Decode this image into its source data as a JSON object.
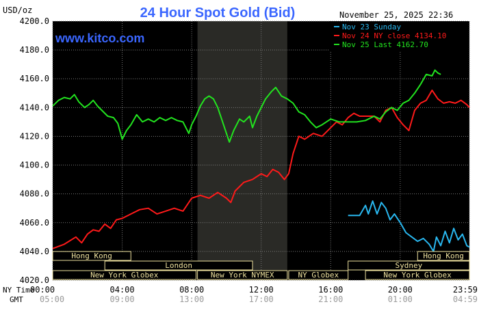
{
  "header": {
    "title": "24 Hour Spot Gold (Bid)",
    "unit_label": "USD/oz",
    "watermark": "www.kitco.com",
    "timestamp": "November 25, 2025 22:36"
  },
  "axis_row_labels": {
    "ny_time": "NY Time",
    "gmt": "GMT"
  },
  "colors": {
    "background": "#000000",
    "grid": "#7a7a7a",
    "title": "#3a66ff",
    "series_sunday": "#29b8f0",
    "series_close": "#ff1a1a",
    "series_last": "#22e51f",
    "session_label": "#f0e3a0",
    "ticks": "#ffffff",
    "gmt_ticks": "#9a9a9a",
    "nymex_shade": "#2a2a26"
  },
  "sessions": [
    {
      "name": "Hong Kong",
      "row": 0,
      "start": "00:00",
      "end": "04:30"
    },
    {
      "name": "Hong Kong",
      "row": 0,
      "start": "21:00",
      "end": "23:59"
    },
    {
      "name": "London",
      "row": 1,
      "start": "03:00",
      "end": "11:30"
    },
    {
      "name": "Sydney",
      "row": 1,
      "start": "17:00",
      "end": "23:59"
    },
    {
      "name": "New York Globex",
      "row": 2,
      "start": "00:00",
      "end": "08:15"
    },
    {
      "name": "New York NYMEX",
      "row": 2,
      "start": "08:20",
      "end": "13:30"
    },
    {
      "name": "NY Globex",
      "row": 2,
      "start": "13:35",
      "end": "17:00"
    },
    {
      "name": "New York Globex",
      "row": 2,
      "start": "18:00",
      "end": "23:59"
    }
  ],
  "chart_data": {
    "type": "line",
    "title": "24 Hour Spot Gold (Bid)",
    "ylabel": "USD/oz",
    "ylim": [
      4020,
      4200
    ],
    "yticks": [
      "4200.0",
      "4180.0",
      "4160.0",
      "4140.0",
      "4120.0",
      "4100.0",
      "4080.0",
      "4060.0",
      "4040.0",
      "4020.0"
    ],
    "xlim": [
      "00:00",
      "23:59"
    ],
    "xticks_ny": [
      "00:00",
      "04:00",
      "08:00",
      "12:00",
      "16:00",
      "20:00",
      "23:59"
    ],
    "xticks_gmt": [
      "05:00",
      "09:00",
      "13:00",
      "17:00",
      "21:00",
      "01:00",
      "04:59"
    ],
    "shaded_region": {
      "label": "New York NYMEX",
      "start": "08:20",
      "end": "13:30"
    },
    "grid": true,
    "legend_position": "top-right",
    "series": [
      {
        "name": "Nov 23 Sunday",
        "legend": "Nov 23 Sunday",
        "color_key": "series_sunday",
        "points": [
          [
            "17:00",
            4065
          ],
          [
            "17:40",
            4065
          ],
          [
            "18:00",
            4072
          ],
          [
            "18:10",
            4066
          ],
          [
            "18:25",
            4075
          ],
          [
            "18:40",
            4066
          ],
          [
            "18:55",
            4074
          ],
          [
            "19:10",
            4070
          ],
          [
            "19:25",
            4062
          ],
          [
            "19:40",
            4066
          ],
          [
            "20:00",
            4060
          ],
          [
            "20:20",
            4053
          ],
          [
            "20:40",
            4050
          ],
          [
            "21:00",
            4047
          ],
          [
            "21:20",
            4049
          ],
          [
            "21:40",
            4045
          ],
          [
            "21:55",
            4040
          ],
          [
            "22:05",
            4050
          ],
          [
            "22:20",
            4044
          ],
          [
            "22:35",
            4054
          ],
          [
            "22:50",
            4046
          ],
          [
            "23:05",
            4056
          ],
          [
            "23:20",
            4048
          ],
          [
            "23:35",
            4052
          ],
          [
            "23:50",
            4044
          ],
          [
            "23:59",
            4043
          ]
        ]
      },
      {
        "name": "Nov 24 NY close",
        "legend": "Nov 24 NY close 4134.10",
        "color_key": "series_close",
        "points": [
          [
            "00:00",
            4042
          ],
          [
            "00:40",
            4045
          ],
          [
            "01:20",
            4050
          ],
          [
            "01:40",
            4046
          ],
          [
            "02:00",
            4052
          ],
          [
            "02:20",
            4055
          ],
          [
            "02:40",
            4054
          ],
          [
            "03:00",
            4059
          ],
          [
            "03:20",
            4056
          ],
          [
            "03:40",
            4062
          ],
          [
            "04:00",
            4063
          ],
          [
            "04:30",
            4066
          ],
          [
            "05:00",
            4069
          ],
          [
            "05:30",
            4070
          ],
          [
            "06:00",
            4066
          ],
          [
            "06:30",
            4068
          ],
          [
            "07:00",
            4070
          ],
          [
            "07:30",
            4068
          ],
          [
            "08:00",
            4077
          ],
          [
            "08:30",
            4079
          ],
          [
            "09:00",
            4077
          ],
          [
            "09:30",
            4081
          ],
          [
            "10:00",
            4077
          ],
          [
            "10:15",
            4074
          ],
          [
            "10:30",
            4082
          ],
          [
            "11:00",
            4088
          ],
          [
            "11:30",
            4090
          ],
          [
            "12:00",
            4094
          ],
          [
            "12:20",
            4092
          ],
          [
            "12:40",
            4097
          ],
          [
            "13:00",
            4095
          ],
          [
            "13:20",
            4090
          ],
          [
            "13:35",
            4094
          ],
          [
            "13:50",
            4108
          ],
          [
            "14:10",
            4120
          ],
          [
            "14:30",
            4118
          ],
          [
            "15:00",
            4122
          ],
          [
            "15:30",
            4120
          ],
          [
            "16:00",
            4126
          ],
          [
            "16:20",
            4130
          ],
          [
            "16:40",
            4128
          ],
          [
            "17:00",
            4133
          ],
          [
            "17:20",
            4136
          ],
          [
            "17:40",
            4134
          ],
          [
            "18:00",
            4134
          ],
          [
            "18:30",
            4134
          ],
          [
            "18:50",
            4130
          ],
          [
            "19:10",
            4138
          ],
          [
            "19:30",
            4140
          ],
          [
            "19:50",
            4133
          ],
          [
            "20:10",
            4128
          ],
          [
            "20:30",
            4124
          ],
          [
            "20:50",
            4138
          ],
          [
            "21:10",
            4143
          ],
          [
            "21:30",
            4145
          ],
          [
            "21:50",
            4152
          ],
          [
            "22:10",
            4146
          ],
          [
            "22:30",
            4143
          ],
          [
            "22:50",
            4144
          ],
          [
            "23:10",
            4143
          ],
          [
            "23:30",
            4145
          ],
          [
            "23:50",
            4142
          ],
          [
            "23:59",
            4140
          ]
        ]
      },
      {
        "name": "Nov 25 Last",
        "legend": "Nov 25 Last 4162.70",
        "color_key": "series_last",
        "points": [
          [
            "00:00",
            4141
          ],
          [
            "00:20",
            4145
          ],
          [
            "00:40",
            4147
          ],
          [
            "01:00",
            4146
          ],
          [
            "01:15",
            4149
          ],
          [
            "01:30",
            4144
          ],
          [
            "01:50",
            4140
          ],
          [
            "02:05",
            4142
          ],
          [
            "02:20",
            4145
          ],
          [
            "02:35",
            4141
          ],
          [
            "02:50",
            4138
          ],
          [
            "03:10",
            4134
          ],
          [
            "03:30",
            4133
          ],
          [
            "03:45",
            4129
          ],
          [
            "04:00",
            4118
          ],
          [
            "04:15",
            4124
          ],
          [
            "04:30",
            4128
          ],
          [
            "04:50",
            4135
          ],
          [
            "05:10",
            4130
          ],
          [
            "05:30",
            4132
          ],
          [
            "05:50",
            4130
          ],
          [
            "06:10",
            4133
          ],
          [
            "06:30",
            4131
          ],
          [
            "06:50",
            4133
          ],
          [
            "07:10",
            4131
          ],
          [
            "07:30",
            4130
          ],
          [
            "07:50",
            4122
          ],
          [
            "08:00",
            4128
          ],
          [
            "08:15",
            4134
          ],
          [
            "08:30",
            4141
          ],
          [
            "08:45",
            4146
          ],
          [
            "09:00",
            4148
          ],
          [
            "09:15",
            4146
          ],
          [
            "09:30",
            4140
          ],
          [
            "09:45",
            4131
          ],
          [
            "10:00",
            4122
          ],
          [
            "10:10",
            4116
          ],
          [
            "10:25",
            4124
          ],
          [
            "10:45",
            4132
          ],
          [
            "11:00",
            4130
          ],
          [
            "11:20",
            4134
          ],
          [
            "11:30",
            4126
          ],
          [
            "11:45",
            4134
          ],
          [
            "12:00",
            4140
          ],
          [
            "12:15",
            4146
          ],
          [
            "12:35",
            4151
          ],
          [
            "12:50",
            4154
          ],
          [
            "13:10",
            4148
          ],
          [
            "13:30",
            4146
          ],
          [
            "13:50",
            4143
          ],
          [
            "14:10",
            4137
          ],
          [
            "14:30",
            4135
          ],
          [
            "14:50",
            4130
          ],
          [
            "15:10",
            4126
          ],
          [
            "15:30",
            4128
          ],
          [
            "16:00",
            4132
          ],
          [
            "16:30",
            4130
          ],
          [
            "17:00",
            4130
          ],
          [
            "17:30",
            4130
          ],
          [
            "18:00",
            4131
          ],
          [
            "18:30",
            4134
          ],
          [
            "18:50",
            4132
          ],
          [
            "19:10",
            4137
          ],
          [
            "19:30",
            4140
          ],
          [
            "19:50",
            4138
          ],
          [
            "20:10",
            4143
          ],
          [
            "20:30",
            4145
          ],
          [
            "20:50",
            4150
          ],
          [
            "21:10",
            4156
          ],
          [
            "21:30",
            4163
          ],
          [
            "21:50",
            4162
          ],
          [
            "22:00",
            4166
          ],
          [
            "22:10",
            4164
          ],
          [
            "22:20",
            4163
          ]
        ]
      }
    ]
  }
}
